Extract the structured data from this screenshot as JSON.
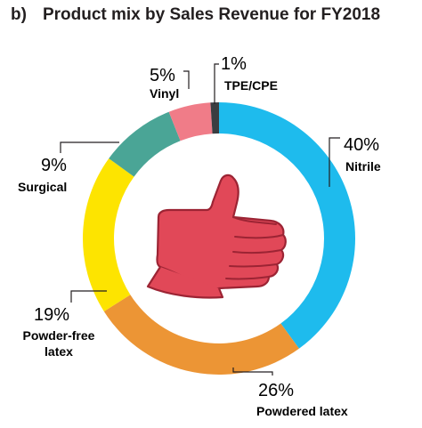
{
  "figure": {
    "panel_label": "b)",
    "title": "Product mix by Sales Revenue for FY2018"
  },
  "chart_data": {
    "type": "pie",
    "donut": true,
    "title": "Product mix by Sales Revenue for FY2018",
    "slices": [
      {
        "name": "Nitrile",
        "value": 40,
        "label": "40%",
        "color": "#1ebbed"
      },
      {
        "name": "Powdered latex",
        "value": 26,
        "label": "26%",
        "color": "#ec9535"
      },
      {
        "name": "Powder-free latex",
        "value": 19,
        "label": "19%",
        "color": "#fde400"
      },
      {
        "name": "Surgical",
        "value": 9,
        "label": "9%",
        "color": "#4aa596"
      },
      {
        "name": "Vinyl",
        "value": 5,
        "label": "5%",
        "color": "#f07c88"
      },
      {
        "name": "TPE/CPE",
        "value": 1,
        "label": "1%",
        "color": "#3a3d40"
      }
    ],
    "legend": "none",
    "center_icon": "thumbs-up-glove-icon"
  },
  "colors": {
    "glove_fill": "#e14858",
    "glove_stroke": "#9c2434",
    "leader_line": "#231f20"
  }
}
